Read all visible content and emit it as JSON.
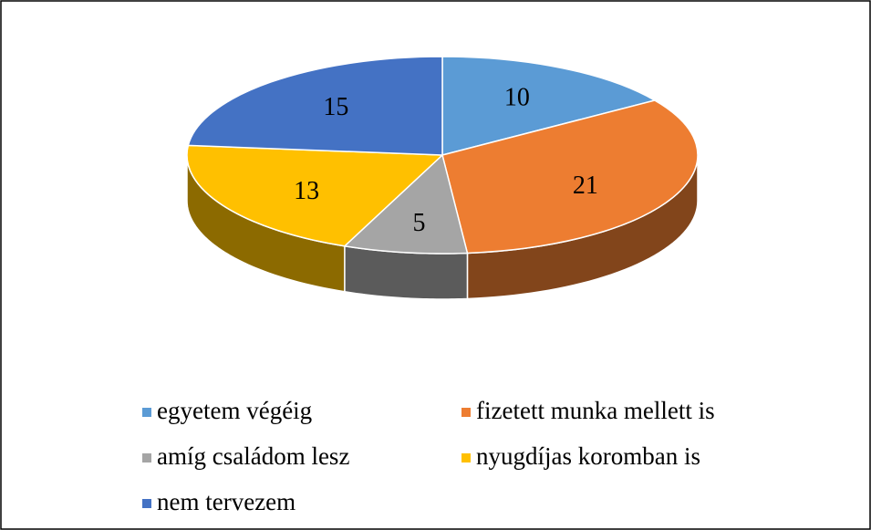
{
  "chart_data": {
    "type": "pie",
    "categories": [
      "egyetem végéig",
      "fizetett munka mellett is",
      "amíg családom lesz",
      "nyugdíjas koromban is",
      "nem tervezem"
    ],
    "values": [
      10,
      21,
      5,
      13,
      15
    ],
    "colors": [
      "#5b9bd5",
      "#ed7d31",
      "#a5a5a5",
      "#ffc000",
      "#4472c4"
    ],
    "legend": "bottom"
  }
}
